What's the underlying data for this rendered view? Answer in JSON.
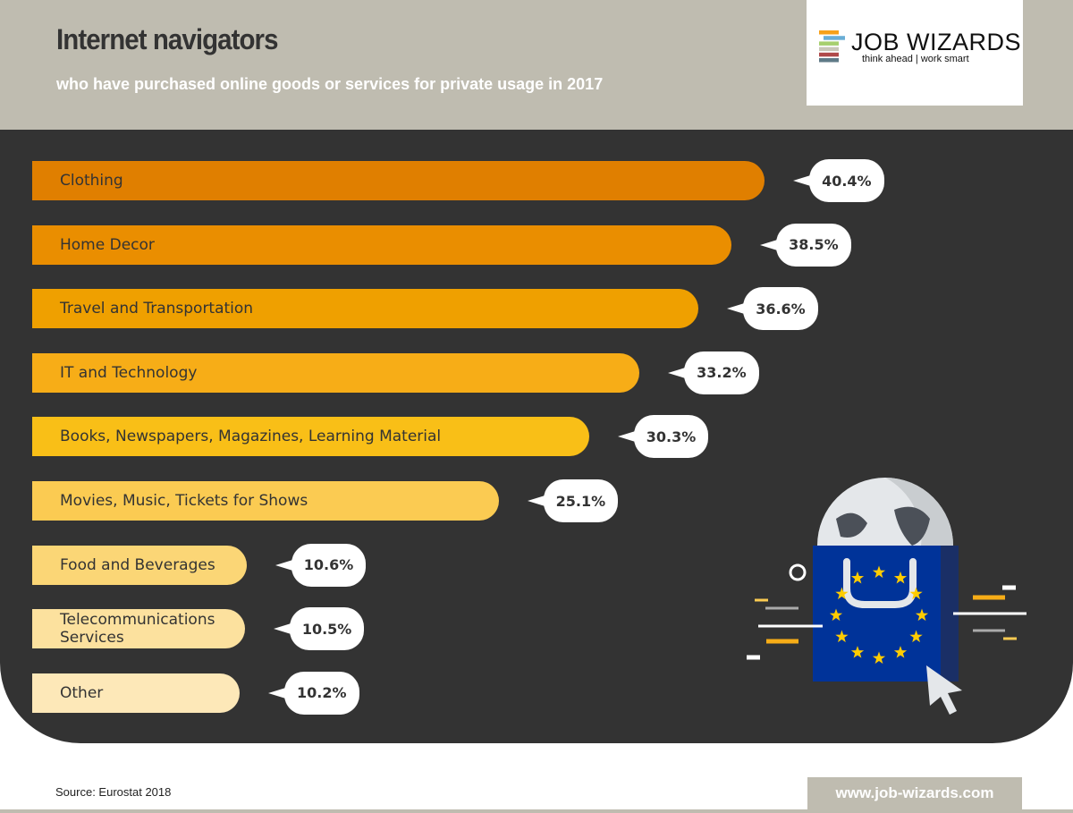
{
  "header": {
    "title": "Internet navigators",
    "subtitle": "who have purchased online goods or services for private usage in 2017"
  },
  "logo": {
    "name": "JOB WIZARDS",
    "tagline": "think ahead | work smart",
    "stripe_colors": [
      "#f7a11a",
      "#6aaed6",
      "#a6cf6e",
      "#c9c6b8",
      "#b04a4a",
      "#5f7a87"
    ]
  },
  "chart_data": {
    "type": "bar",
    "orientation": "horizontal",
    "title": "Internet navigators",
    "subtitle": "who have purchased online goods or services for private usage in 2017",
    "unit": "%",
    "categories": [
      "Clothing",
      "Home Decor",
      "Travel and Transportation",
      "IT and Technology",
      "Books, Newspapers, Magazines, Learning Material",
      "Movies, Music, Tickets for Shows",
      "Food and Beverages",
      "Telecommunications Services",
      "Other"
    ],
    "values": [
      40.4,
      38.5,
      36.6,
      33.2,
      30.3,
      25.1,
      10.6,
      10.5,
      10.2
    ],
    "labels": [
      "40.4%",
      "38.5%",
      "36.6%",
      "33.2%",
      "30.3%",
      "25.1%",
      "10.6%",
      "10.5%",
      "10.2%"
    ],
    "colors": [
      "#e07f00",
      "#ea8e00",
      "#efa000",
      "#f7ad17",
      "#f9bf17",
      "#fbcb52",
      "#fbd676",
      "#fce19e",
      "#fde8b8"
    ],
    "grid": false
  },
  "footer": {
    "source": "Source: Eurostat 2018",
    "website": "www.job-wizards.com"
  },
  "colors": {
    "header_bg": "#bfbcb0",
    "panel_bg": "#333333",
    "eu_blue": "#003399",
    "eu_star": "#ffcc00"
  }
}
